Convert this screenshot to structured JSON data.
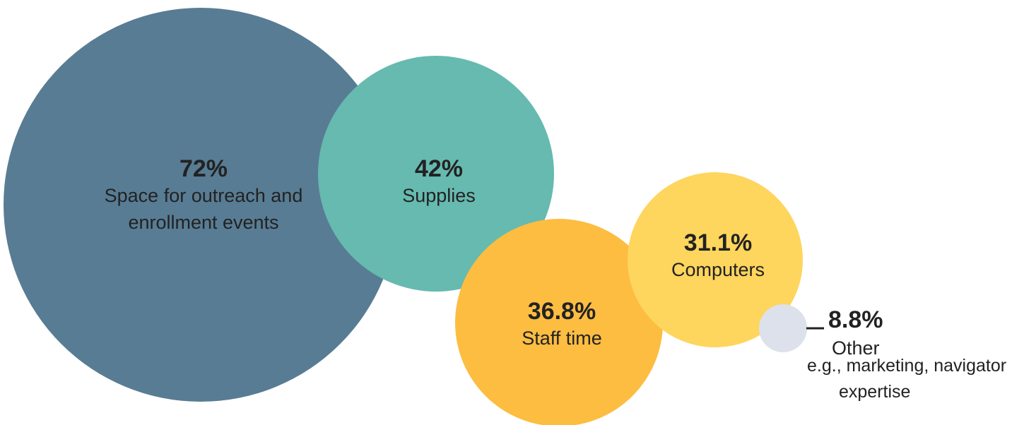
{
  "chart_data": {
    "type": "bubble",
    "title": "",
    "series": [
      {
        "value": 72,
        "value_label": "72%",
        "label_lines": [
          "Space for outreach and",
          "enrollment events"
        ],
        "color": "#587c94"
      },
      {
        "value": 42,
        "value_label": "42%",
        "label_lines": [
          "Supplies"
        ],
        "color": "#66bab0"
      },
      {
        "value": 36.8,
        "value_label": "36.8%",
        "label_lines": [
          "Staff time"
        ],
        "color": "#fdbd41"
      },
      {
        "value": 31.1,
        "value_label": "31.1%",
        "label_lines": [
          "Computers"
        ],
        "color": "#fed55d"
      },
      {
        "value": 8.8,
        "value_label": "8.8%",
        "label_lines": [
          "Other"
        ],
        "note_lines": [
          "e.g., marketing, navigator",
          "expertise"
        ],
        "color": "#dde1ec"
      }
    ]
  }
}
